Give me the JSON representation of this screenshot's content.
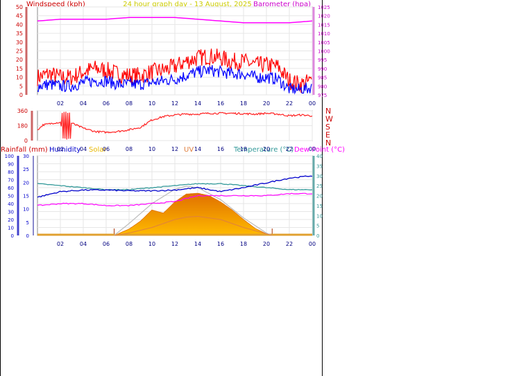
{
  "chart_data": [
    {
      "type": "line",
      "title": "24 hour graph day - 13 August, 2025",
      "ylabel": "Windspeed (kph)",
      "y2label": "Barometer (hpa)",
      "ylim": [
        0,
        50
      ],
      "yticks": [
        0,
        5,
        10,
        15,
        20,
        25,
        30,
        35,
        40,
        45,
        50
      ],
      "y2lim": [
        975,
        1025
      ],
      "y2ticks": [
        975,
        980,
        985,
        990,
        995,
        1000,
        1005,
        1010,
        1015,
        1020,
        1025
      ],
      "xticks": [
        "02",
        "04",
        "06",
        "08",
        "10",
        "12",
        "14",
        "16",
        "18",
        "20",
        "22",
        "00"
      ],
      "grid": true,
      "colors": {
        "gust": "#ff0000",
        "wind": "#0000ff",
        "barometer": "#ff00ff",
        "axis_left": "#cc0000",
        "axis_right": "#cc00cc",
        "title": "#cccc00"
      },
      "series": [
        {
          "key": "barometer",
          "axis": "right",
          "x": [
            0,
            2,
            4,
            6,
            8,
            10,
            12,
            14,
            16,
            18,
            20,
            22,
            24
          ],
          "values": [
            1017,
            1018,
            1018,
            1018,
            1019,
            1019,
            1019,
            1018,
            1017,
            1016,
            1016,
            1016,
            1017
          ]
        },
        {
          "key": "gust",
          "axis": "left",
          "x": [
            0,
            1,
            2,
            3,
            4,
            5,
            6,
            7,
            8,
            9,
            10,
            11,
            12,
            13,
            14,
            15,
            16,
            17,
            18,
            19,
            20,
            21,
            22,
            23,
            24
          ],
          "values": [
            10,
            12,
            10,
            10,
            13,
            15,
            14,
            12,
            11,
            11,
            13,
            14,
            16,
            19,
            21,
            22,
            21,
            19,
            19,
            17,
            17,
            16,
            8,
            6,
            8
          ]
        },
        {
          "key": "wind",
          "axis": "left",
          "x": [
            0,
            1,
            2,
            3,
            4,
            5,
            6,
            7,
            8,
            9,
            10,
            11,
            12,
            13,
            14,
            15,
            16,
            17,
            18,
            19,
            20,
            21,
            22,
            23,
            24
          ],
          "values": [
            5,
            6,
            5,
            5,
            7,
            8,
            8,
            6,
            6,
            6,
            7,
            8,
            9,
            11,
            13,
            14,
            13,
            12,
            12,
            10,
            10,
            9,
            3,
            3,
            4
          ]
        }
      ]
    },
    {
      "type": "line",
      "ylabel_ticks": [
        "360",
        "180",
        "0"
      ],
      "ylim": [
        0,
        360
      ],
      "y2labels": [
        "N",
        "W",
        "S",
        "E",
        "N"
      ],
      "xticks": [
        "02",
        "04",
        "06",
        "08",
        "10",
        "12",
        "14",
        "16",
        "18",
        "20",
        "22",
        "00"
      ],
      "colors": {
        "direction": "#ff2020",
        "axis": "#cc0000"
      },
      "series": [
        {
          "key": "direction",
          "x": [
            0,
            0.5,
            1,
            1.5,
            2,
            2.3,
            2.6,
            3,
            4,
            5,
            6,
            7,
            8,
            9,
            10,
            11,
            12,
            13,
            14,
            15,
            16,
            17,
            18,
            19,
            20,
            21,
            22,
            23,
            24
          ],
          "values": [
            130,
            190,
            200,
            215,
            220,
            60,
            220,
            210,
            150,
            110,
            100,
            110,
            130,
            160,
            250,
            290,
            310,
            320,
            320,
            330,
            330,
            330,
            325,
            320,
            330,
            320,
            300,
            310,
            300
          ]
        }
      ]
    },
    {
      "type": "area",
      "labels": {
        "rainfall": "Rainfall (mm)",
        "humidity": "Humidity",
        "solar": "Solar",
        "uv": "UV",
        "temperature": "Temperature (°C)",
        "dewpoint": "Dew Point (°C)"
      },
      "humidity_ticks": [
        0,
        10,
        20,
        30,
        40,
        50,
        60,
        70,
        80,
        90,
        100
      ],
      "rain_ticks": [
        0,
        5,
        10,
        15,
        20,
        25,
        30
      ],
      "temp_ticks": [
        0,
        5,
        10,
        15,
        20,
        25,
        30,
        35,
        40
      ],
      "xticks": [
        "02",
        "04",
        "06",
        "08",
        "10",
        "12",
        "14",
        "16",
        "18",
        "20",
        "22",
        "00"
      ],
      "colors": {
        "rain": "#0000cc",
        "humidity": "#0000cc",
        "solar": "#ffbb00",
        "solar_dark": "#e07000",
        "uv": "#e08040",
        "temperature": "#339999",
        "dewpoint": "#ff00ff",
        "theoretical_solar": "#bbbbbb",
        "sunrise_marker": "#aa3300"
      },
      "sunrise": 6.7,
      "sunset": 20.5,
      "series": [
        {
          "key": "temperature",
          "x": [
            0,
            2,
            4,
            6,
            8,
            10,
            12,
            14,
            16,
            18,
            20,
            22,
            24
          ],
          "values": [
            26,
            25,
            24,
            23,
            23,
            24,
            25,
            26,
            26,
            25,
            24,
            23,
            23
          ]
        },
        {
          "key": "humidity",
          "x": [
            0,
            2,
            4,
            6,
            8,
            10,
            12,
            14,
            16,
            18,
            20,
            22,
            24
          ],
          "values": [
            48,
            55,
            57,
            57,
            56,
            56,
            57,
            60,
            55,
            60,
            66,
            72,
            75
          ]
        },
        {
          "key": "dewpoint",
          "x": [
            0,
            2,
            4,
            6,
            8,
            10,
            12,
            14,
            16,
            18,
            20,
            22,
            24
          ],
          "values": [
            15,
            16,
            16,
            15,
            15,
            16,
            17,
            20,
            20,
            20,
            20,
            21,
            21
          ]
        },
        {
          "key": "solar",
          "x": [
            6.7,
            8,
            9,
            10,
            11,
            12,
            13,
            14,
            15,
            16,
            17,
            18,
            19,
            20,
            20.5
          ],
          "values": [
            0,
            8,
            18,
            32,
            28,
            42,
            52,
            53,
            50,
            42,
            32,
            20,
            9,
            2,
            0
          ]
        },
        {
          "key": "uv",
          "x": [
            6.7,
            8,
            10,
            12,
            13,
            14,
            16,
            18,
            20,
            20.5
          ],
          "values": [
            0,
            3,
            10,
            20,
            23,
            24,
            20,
            10,
            2,
            0
          ]
        },
        {
          "key": "theoretical_solar",
          "x": [
            6.7,
            8,
            10,
            12,
            13,
            14,
            16,
            18,
            20,
            20.5
          ],
          "values": [
            0,
            15,
            40,
            58,
            62,
            60,
            45,
            22,
            3,
            0
          ]
        }
      ]
    }
  ]
}
